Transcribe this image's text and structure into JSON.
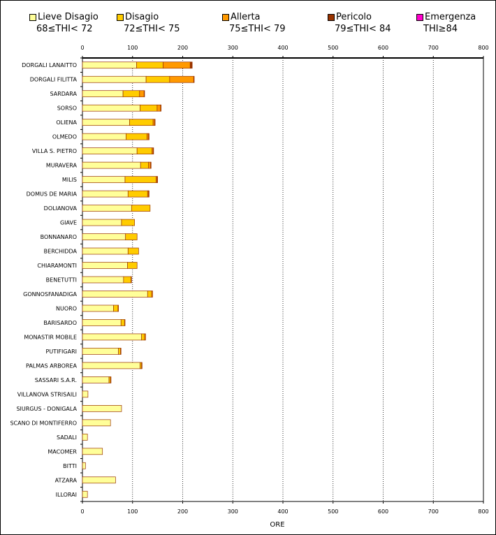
{
  "chart_data": {
    "type": "bar",
    "orientation": "horizontal",
    "stacked": true,
    "title": "",
    "xlabel": "ORE",
    "ylabel": "",
    "xlim": [
      0,
      800
    ],
    "xticks": [
      "0",
      "100",
      "200",
      "300",
      "400",
      "500",
      "600",
      "700",
      "800"
    ],
    "legend_position": "top",
    "categories": [
      "DORGALI LANAITTO",
      "DORGALI FILITTA",
      "SARDARA",
      "SORSO",
      "OLIENA",
      "OLMEDO",
      "VILLA S. PIETRO",
      "MURAVERA",
      "MILIS",
      "DOMUS DE MARIA",
      "DOLIANOVA",
      "GIAVE",
      "BONNANARO",
      "BERCHIDDA",
      "CHIARAMONTI",
      "BENETUTTI",
      "GONNOSFANADIGA",
      "NUORO",
      "BARISARDO",
      "MONASTIR MOBILE",
      "PUTIFIGARI",
      "PALMAS ARBOREA",
      "SASSARI S.A.R.",
      "VILLANOVA  STRISAILI",
      "SIURGUS - DONIGALA",
      "SCANO DI MONTIFERRO",
      "SADALI",
      "MACOMER",
      "BITTI",
      "ATZARA",
      "ILLORAI"
    ],
    "series": [
      {
        "name": "Lieve Disagio",
        "range": "68≤THI< 72",
        "color": "#FFFF99",
        "values": [
          108,
          127,
          81,
          115,
          94,
          87,
          109,
          116,
          85,
          91,
          98,
          78,
          86,
          91,
          90,
          82,
          130,
          62,
          77,
          118,
          72,
          115,
          53,
          11,
          78,
          56,
          10,
          40,
          6,
          66,
          10
        ]
      },
      {
        "name": "Disagio",
        "range": "72≤THI< 75",
        "color": "#FFCC00",
        "values": [
          53,
          47,
          33,
          34,
          47,
          42,
          30,
          16,
          62,
          39,
          37,
          26,
          23,
          21,
          19,
          15,
          8,
          9,
          7,
          6,
          4,
          3,
          3,
          0,
          0,
          0,
          0,
          0,
          0,
          0,
          0
        ]
      },
      {
        "name": "Allerta",
        "range": "75≤THI< 79",
        "color": "#FF9900",
        "values": [
          54,
          48,
          9,
          7,
          3,
          3,
          2,
          4,
          2,
          2,
          0,
          0,
          0,
          0,
          0,
          1,
          2,
          1,
          1,
          2,
          1,
          1,
          1,
          0,
          0,
          0,
          0,
          0,
          0,
          0,
          0
        ]
      },
      {
        "name": "Pericolo",
        "range": "79≤THI< 84",
        "color": "#993300",
        "values": [
          4,
          1,
          1,
          1,
          1,
          1,
          1,
          1,
          1,
          1,
          0,
          0,
          0,
          0,
          0,
          0,
          0,
          0,
          0,
          0,
          0,
          0,
          0,
          0,
          0,
          0,
          0,
          0,
          0,
          0,
          0
        ]
      },
      {
        "name": "Emergenza",
        "range": "THI≥84",
        "color": "#FF00CC",
        "values": [
          0,
          0,
          0,
          0,
          0,
          0,
          0,
          0,
          0,
          0,
          0,
          0,
          0,
          0,
          0,
          0,
          0,
          0,
          0,
          0,
          0,
          0,
          0,
          0,
          0,
          0,
          0,
          0,
          0,
          0,
          0
        ]
      }
    ]
  }
}
